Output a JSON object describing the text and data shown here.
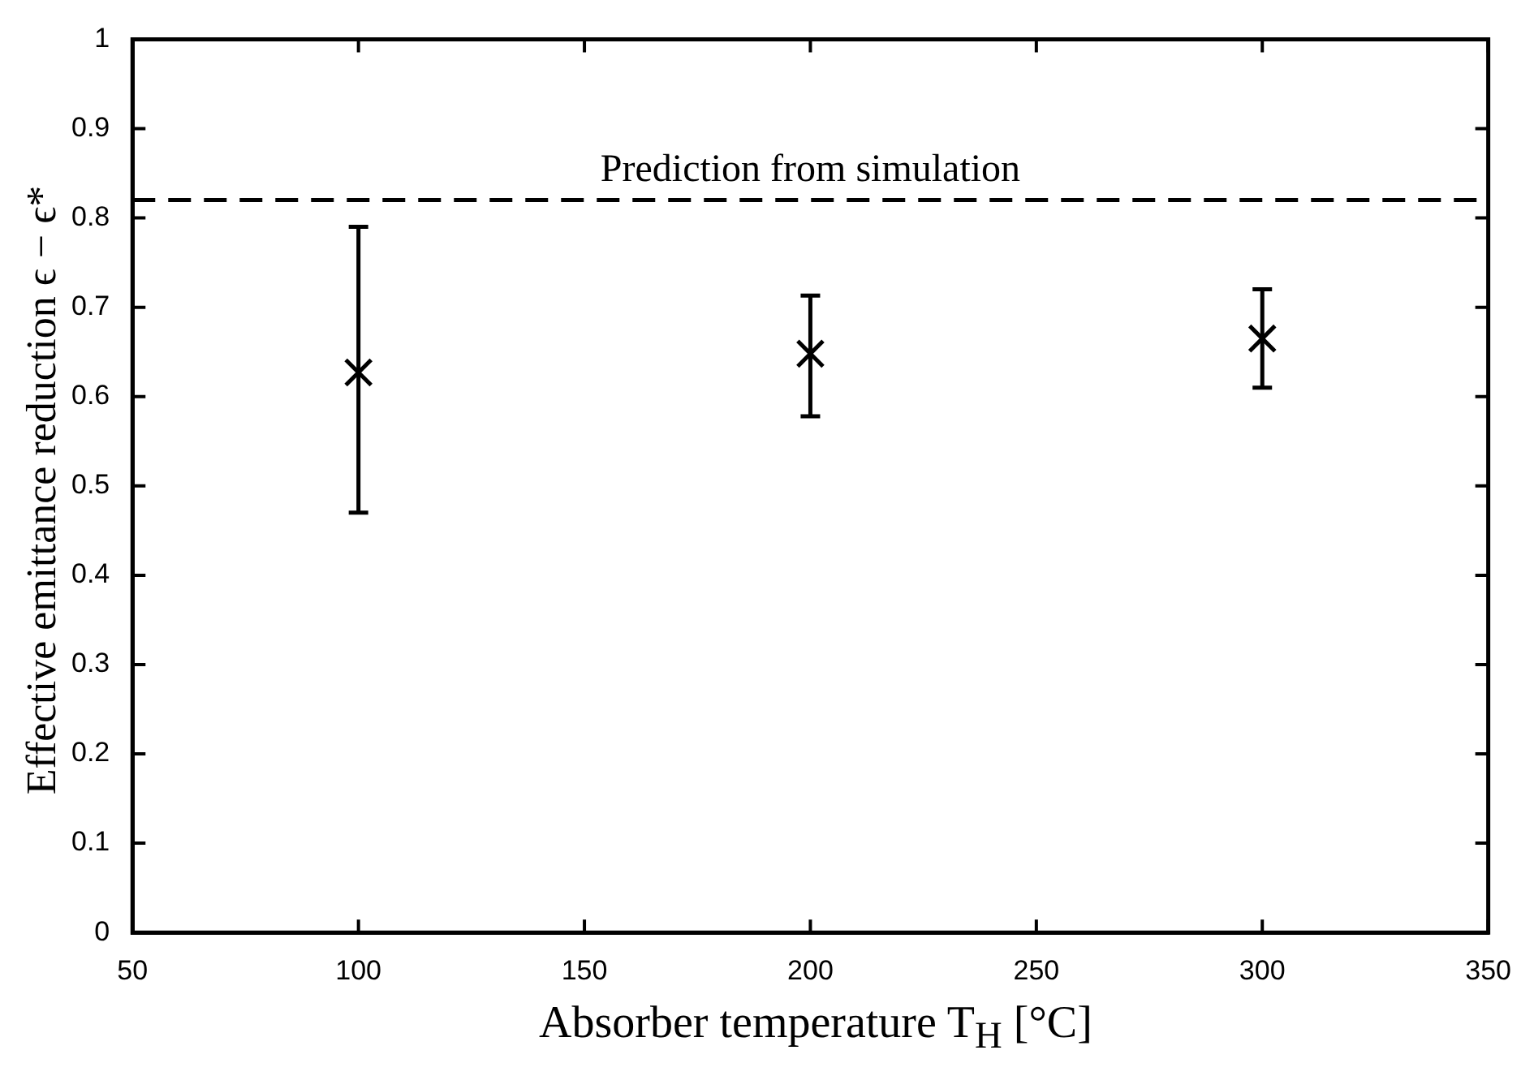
{
  "chart_data": {
    "type": "scatter",
    "xlabel": "Absorber temperature T$_{H}$ [°C]",
    "ylabel": "Effective emittance reduction  ϵ − ϵ*",
    "x": [
      100,
      200,
      300
    ],
    "series": [
      {
        "color": "#000000",
        "values": [
          0.627,
          0.648,
          0.665
        ],
        "errors": [
          [
            0.47,
            0.79
          ],
          [
            0.578,
            0.713
          ],
          [
            0.61,
            0.72
          ]
        ]
      }
    ],
    "xlim": [
      50,
      350
    ],
    "xticks": [
      50,
      100,
      150,
      200,
      250,
      300,
      350
    ],
    "ylim": [
      0,
      1
    ],
    "yticks": [
      0,
      0.1,
      0.2,
      0.3,
      0.4,
      0.5,
      0.6,
      0.7,
      0.8,
      0.9,
      1
    ],
    "ref_lines": [
      {
        "axis": "y",
        "value": 0.82,
        "label": "Prediction from simulation",
        "color": "#000000",
        "line_style": "dashed"
      }
    ],
    "marker": "cross",
    "grid": false,
    "legend": false
  }
}
